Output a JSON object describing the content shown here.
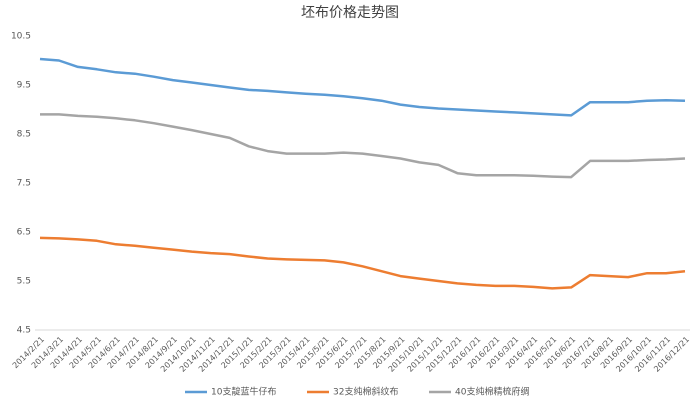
{
  "chart_data": {
    "type": "line",
    "title": "坯布价格走势图",
    "categories": [
      "2014/2/21",
      "2014/3/21",
      "2014/4/21",
      "2014/5/21",
      "2014/6/21",
      "2014/7/21",
      "2014/8/21",
      "2014/9/21",
      "2014/10/21",
      "2014/11/21",
      "2014/12/21",
      "2015/1/21",
      "2015/2/21",
      "2015/3/21",
      "2015/4/21",
      "2015/5/21",
      "2015/6/21",
      "2015/7/21",
      "2015/8/21",
      "2015/9/21",
      "2015/10/21",
      "2015/11/21",
      "2015/12/21",
      "2016/1/21",
      "2016/2/21",
      "2016/3/21",
      "2016/4/21",
      "2016/5/21",
      "2016/6/21",
      "2016/7/21",
      "2016/8/21",
      "2016/9/21",
      "2016/10/21",
      "2016/11/21",
      "2016/12/21"
    ],
    "series": [
      {
        "name": "10支靛蓝牛仔布",
        "color": "#5b9bd5",
        "values": [
          10.03,
          10.0,
          9.87,
          9.82,
          9.76,
          9.73,
          9.67,
          9.6,
          9.55,
          9.5,
          9.45,
          9.4,
          9.38,
          9.35,
          9.32,
          9.3,
          9.27,
          9.23,
          9.18,
          9.1,
          9.05,
          9.02,
          9.0,
          8.98,
          8.96,
          8.94,
          8.92,
          8.9,
          8.88,
          9.15,
          9.15,
          9.15,
          9.18,
          9.19,
          9.18
        ]
      },
      {
        "name": "32支纯棉斜纹布",
        "color": "#ed7d31",
        "values": [
          6.38,
          6.37,
          6.35,
          6.32,
          6.25,
          6.22,
          6.18,
          6.14,
          6.1,
          6.07,
          6.05,
          6.0,
          5.96,
          5.94,
          5.93,
          5.92,
          5.88,
          5.8,
          5.7,
          5.6,
          5.55,
          5.5,
          5.45,
          5.42,
          5.4,
          5.4,
          5.38,
          5.35,
          5.37,
          5.62,
          5.6,
          5.58,
          5.66,
          5.66,
          5.7
        ]
      },
      {
        "name": "40支纯棉精梳府绸",
        "color": "#a5a5a5",
        "values": [
          8.9,
          8.9,
          8.87,
          8.85,
          8.82,
          8.78,
          8.72,
          8.65,
          8.58,
          8.5,
          8.42,
          8.25,
          8.15,
          8.1,
          8.1,
          8.1,
          8.12,
          8.1,
          8.05,
          8.0,
          7.92,
          7.87,
          7.7,
          7.66,
          7.66,
          7.66,
          7.65,
          7.63,
          7.62,
          7.95,
          7.95,
          7.95,
          7.97,
          7.98,
          8.0
        ]
      }
    ],
    "ylim": [
      4.5,
      10.5
    ],
    "yticks": [
      4.5,
      5.5,
      6.5,
      7.5,
      8.5,
      9.5,
      10.5
    ],
    "grid": false
  }
}
